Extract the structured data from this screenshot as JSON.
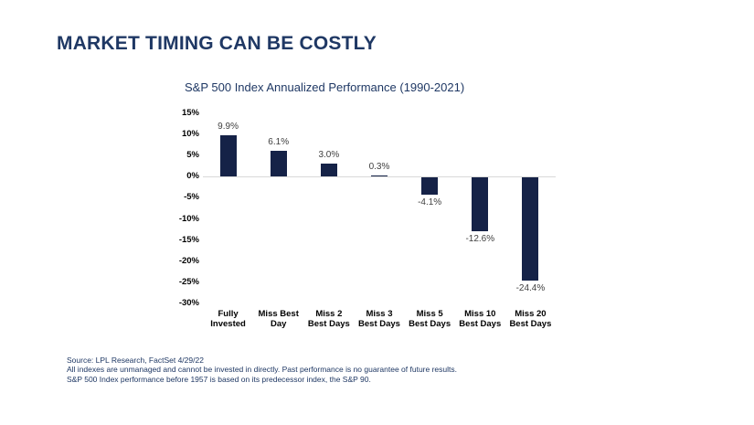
{
  "page": {
    "title": "MARKET TIMING CAN BE COSTLY"
  },
  "chart_data": {
    "type": "bar",
    "title": "S&P 500 Index Annualized Performance (1990-2021)",
    "categories": [
      "Fully Invested",
      "Miss Best Day",
      "Miss 2 Best Days",
      "Miss 3 Best Days",
      "Miss 5 Best Days",
      "Miss 10 Best Days",
      "Miss 20 Best Days"
    ],
    "category_lines": [
      [
        "Fully",
        "Invested"
      ],
      [
        "Miss Best",
        "Day"
      ],
      [
        "Miss 2",
        "Best Days"
      ],
      [
        "Miss 3",
        "Best Days"
      ],
      [
        "Miss 5",
        "Best Days"
      ],
      [
        "Miss 10",
        "Best Days"
      ],
      [
        "Miss 20",
        "Best Days"
      ]
    ],
    "values": [
      9.9,
      6.1,
      3.0,
      0.3,
      -4.1,
      -12.6,
      -24.4
    ],
    "value_labels": [
      "9.9%",
      "6.1%",
      "3.0%",
      "0.3%",
      "-4.1%",
      "-12.6%",
      "-24.4%"
    ],
    "xlabel": "",
    "ylabel": "",
    "ylim": [
      -30,
      15
    ],
    "y_tick_values": [
      15,
      10,
      5,
      0,
      -5,
      -10,
      -15,
      -20,
      -25,
      -30
    ],
    "y_tick_labels": [
      "15%",
      "10%",
      "5%",
      "0%",
      "-5%",
      "-10%",
      "-15%",
      "-20%",
      "-25%",
      "-30%"
    ],
    "grid": false,
    "legend": null,
    "bar_color": "#152247",
    "zero_line_color": "#D9D9D9"
  },
  "footer": {
    "lines": [
      "Source: LPL Research, FactSet 4/29/22",
      "All indexes are unmanaged and cannot be invested in directly. Past performance is no guarantee of future results.",
      "S&P 500 Index performance before 1957 is based on its predecessor index, the S&P 90."
    ]
  },
  "colors": {
    "title_navy": "#1F3864",
    "bar_navy": "#152247",
    "data_label_gray": "#404040",
    "axis_label_black": "#000000",
    "zero_line_gray": "#D9D9D9",
    "background": "#FFFFFF"
  }
}
